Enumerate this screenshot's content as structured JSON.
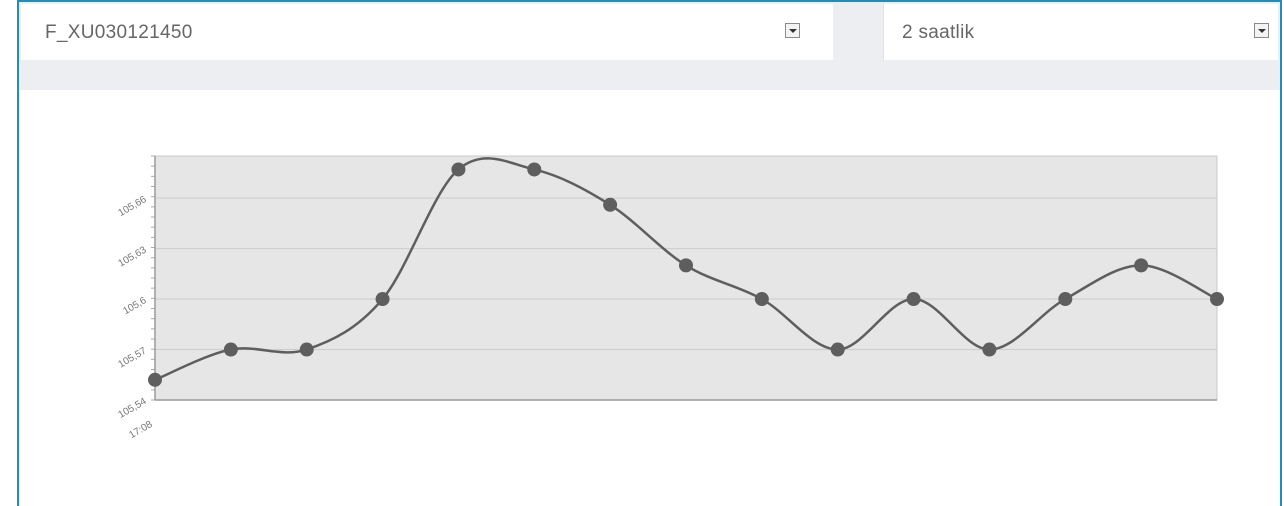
{
  "selectors": {
    "tag": {
      "value": "F_XU030121450"
    },
    "range": {
      "value": "2 saatlik"
    }
  },
  "chart_data": {
    "type": "line",
    "y_ticks": [
      "105,54",
      "105,57",
      "105,6",
      "105,63",
      "105,66"
    ],
    "x_ticks": [
      "17:08"
    ],
    "ylim": [
      105.54,
      105.685
    ],
    "grid": true,
    "x": [
      0,
      1,
      2,
      3,
      4,
      5,
      6,
      7,
      8,
      9,
      10,
      11,
      12,
      13,
      14
    ],
    "values": [
      105.552,
      105.57,
      105.57,
      105.6,
      105.677,
      105.677,
      105.656,
      105.62,
      105.6,
      105.57,
      105.6,
      105.57,
      105.6,
      105.62,
      105.6
    ],
    "color": "#5e5e5e"
  },
  "colors": {
    "accent": "#1d8fb8",
    "plot_bg": "#e6e6e6",
    "top_band": "#eceef1"
  }
}
